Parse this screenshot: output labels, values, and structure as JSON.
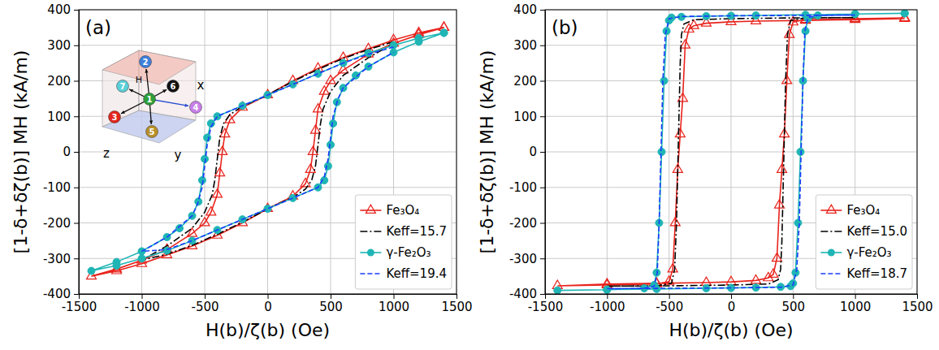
{
  "chart_data": [
    {
      "type": "line",
      "title": "(a)",
      "x_label": "H(b)/ζ(b) (Oe)",
      "y_label": "[1-δ+δζ(b)] MH (kA/m)",
      "xlim": [
        -1500,
        1500
      ],
      "xticks": [
        -1500,
        -1000,
        -500,
        0,
        500,
        1000,
        1500
      ],
      "ylim": [
        -400,
        400
      ],
      "yticks": [
        -400,
        -300,
        -200,
        -100,
        0,
        100,
        200,
        300,
        400
      ],
      "grid": true,
      "legend": "lower right",
      "inset": {
        "labels": [
          "1",
          "2",
          "3",
          "4",
          "5",
          "6",
          "7"
        ],
        "colors": [
          "#2e9e3a",
          "#3f7fd9",
          "#e3261c",
          "#c77fe8",
          "#b8902a",
          "#111111",
          "#5ad0d8"
        ],
        "axis_labels": [
          "x",
          "y",
          "z"
        ],
        "field_label": "H"
      },
      "series": [
        {
          "name": "Fe₃O₄",
          "color": "#e8231c",
          "marker": "triangle",
          "line_style": "solid",
          "x": [
            1400,
            1200,
            1000,
            800,
            600,
            400,
            200,
            0,
            -200,
            -300,
            -340,
            -360,
            -380,
            -400,
            -450,
            -500,
            -600,
            -800,
            -1000,
            -1200,
            -1400,
            -1200,
            -1000,
            -800,
            -600,
            -400,
            -200,
            0,
            200,
            300,
            340,
            360,
            380,
            400,
            450,
            500,
            600,
            800,
            1000,
            1200,
            1400
          ],
          "values": [
            350,
            335,
            315,
            290,
            265,
            235,
            200,
            160,
            125,
            90,
            50,
            0,
            -60,
            -120,
            -170,
            -200,
            -230,
            -275,
            -305,
            -330,
            -350,
            -335,
            -315,
            -290,
            -265,
            -235,
            -200,
            -160,
            -125,
            -90,
            -50,
            0,
            60,
            120,
            170,
            200,
            230,
            275,
            305,
            330,
            350
          ]
        },
        {
          "name": "Keff=15.7",
          "color": "#000000",
          "marker": "none",
          "line_style": "dashdot",
          "x": [
            1000,
            800,
            600,
            400,
            200,
            0,
            -200,
            -300,
            -350,
            -380,
            -400,
            -420,
            -440,
            -500,
            -600,
            -800,
            -1000,
            -800,
            -600,
            -400,
            -200,
            0,
            200,
            300,
            350,
            380,
            400,
            420,
            440,
            500,
            600,
            800,
            1000
          ],
          "values": [
            310,
            288,
            263,
            232,
            198,
            160,
            128,
            105,
            80,
            40,
            -20,
            -80,
            -120,
            -170,
            -215,
            -265,
            -305,
            -288,
            -263,
            -232,
            -198,
            -160,
            -128,
            -105,
            -80,
            -40,
            20,
            80,
            120,
            170,
            215,
            265,
            305
          ]
        },
        {
          "name": "γ-Fe₂O₃",
          "color": "#1fb5b5",
          "marker": "circle",
          "line_style": "solid",
          "x": [
            1400,
            1200,
            1000,
            800,
            600,
            400,
            200,
            0,
            -200,
            -400,
            -450,
            -480,
            -500,
            -520,
            -550,
            -600,
            -700,
            -800,
            -1000,
            -1200,
            -1400,
            -1200,
            -1000,
            -800,
            -600,
            -400,
            -200,
            0,
            200,
            400,
            450,
            480,
            500,
            520,
            550,
            600,
            700,
            800,
            1000,
            1200,
            1400
          ],
          "values": [
            335,
            320,
            300,
            278,
            250,
            220,
            190,
            160,
            130,
            100,
            80,
            40,
            -20,
            -80,
            -140,
            -180,
            -215,
            -240,
            -280,
            -310,
            -335,
            -320,
            -300,
            -278,
            -250,
            -220,
            -190,
            -160,
            -130,
            -100,
            -80,
            -40,
            20,
            80,
            140,
            180,
            215,
            240,
            280,
            310,
            335
          ]
        },
        {
          "name": "Keff=19.4",
          "color": "#1a3cff",
          "marker": "none",
          "line_style": "dashed",
          "x": [
            1000,
            800,
            600,
            400,
            200,
            0,
            -200,
            -400,
            -450,
            -480,
            -500,
            -520,
            -560,
            -600,
            -800,
            -1000,
            -800,
            -600,
            -400,
            -200,
            0,
            200,
            400,
            450,
            480,
            500,
            520,
            560,
            600,
            800,
            1000
          ],
          "values": [
            295,
            275,
            250,
            220,
            190,
            160,
            130,
            100,
            70,
            20,
            -40,
            -100,
            -150,
            -180,
            -240,
            -280,
            -275,
            -250,
            -220,
            -190,
            -160,
            -130,
            -100,
            -70,
            -20,
            40,
            100,
            150,
            180,
            240,
            280
          ]
        }
      ]
    },
    {
      "type": "line",
      "title": "(b)",
      "x_label": "H(b)/ζ(b) (Oe)",
      "y_label": "[1-δ+δζ(b)] MH (kA/m)",
      "xlim": [
        -1500,
        1500
      ],
      "xticks": [
        -1500,
        -1000,
        -500,
        0,
        500,
        1000,
        1500
      ],
      "ylim": [
        -400,
        400
      ],
      "yticks": [
        -400,
        -300,
        -200,
        -100,
        0,
        100,
        200,
        300,
        400
      ],
      "grid": true,
      "legend": "lower right",
      "series": [
        {
          "name": "Fe₃O₄",
          "color": "#e8231c",
          "marker": "triangle",
          "line_style": "solid",
          "x": [
            1400,
            1000,
            600,
            200,
            0,
            -200,
            -300,
            -340,
            -370,
            -390,
            -410,
            -430,
            -450,
            -470,
            -500,
            -600,
            -1000,
            -1400,
            -1000,
            -600,
            -200,
            0,
            200,
            300,
            340,
            370,
            390,
            410,
            430,
            450,
            470,
            500,
            600,
            1000,
            1400
          ],
          "values": [
            375,
            372,
            370,
            368,
            366,
            362,
            355,
            345,
            300,
            150,
            50,
            -50,
            -200,
            -330,
            -365,
            -372,
            -375,
            -377,
            -372,
            -370,
            -368,
            -366,
            -362,
            -355,
            -345,
            -300,
            -150,
            -50,
            50,
            200,
            330,
            365,
            372,
            375,
            377
          ]
        },
        {
          "name": "Keff=15.0",
          "color": "#000000",
          "marker": "none",
          "line_style": "dashdot",
          "x": [
            1000,
            500,
            0,
            -300,
            -380,
            -400,
            -410,
            -420,
            -430,
            -440,
            -455,
            -480,
            -600,
            -1000,
            -500,
            0,
            300,
            380,
            400,
            410,
            420,
            430,
            440,
            455,
            480,
            600,
            1000
          ],
          "values": [
            378,
            377,
            375,
            372,
            360,
            330,
            250,
            100,
            -50,
            -200,
            -330,
            -370,
            -377,
            -378,
            -377,
            -375,
            -372,
            -360,
            -330,
            -250,
            -100,
            50,
            200,
            330,
            370,
            377,
            378
          ]
        },
        {
          "name": "γ-Fe₂O₃",
          "color": "#1fb5b5",
          "marker": "circle",
          "line_style": "solid",
          "x": [
            1400,
            1000,
            600,
            200,
            0,
            -200,
            -400,
            -480,
            -500,
            -520,
            -540,
            -560,
            -580,
            -600,
            -620,
            -700,
            -1000,
            -1400,
            -1000,
            -600,
            -200,
            0,
            200,
            400,
            480,
            500,
            520,
            540,
            560,
            580,
            600,
            620,
            700,
            1000,
            1400
          ],
          "values": [
            390,
            388,
            386,
            384,
            383,
            382,
            380,
            378,
            370,
            340,
            200,
            0,
            -200,
            -340,
            -375,
            -384,
            -388,
            -390,
            -388,
            -386,
            -384,
            -383,
            -382,
            -380,
            -378,
            -370,
            -340,
            -200,
            0,
            200,
            340,
            375,
            384,
            388,
            390
          ]
        },
        {
          "name": "Keff=18.7",
          "color": "#1a3cff",
          "marker": "none",
          "line_style": "dashed",
          "x": [
            1000,
            500,
            0,
            -400,
            -500,
            -530,
            -550,
            -565,
            -580,
            -595,
            -620,
            -700,
            -1000,
            -500,
            0,
            400,
            500,
            530,
            550,
            565,
            580,
            595,
            620,
            700,
            1000
          ],
          "values": [
            385,
            384,
            383,
            381,
            375,
            330,
            200,
            0,
            -200,
            -340,
            -378,
            -384,
            -385,
            -384,
            -383,
            -381,
            -375,
            -330,
            -200,
            0,
            200,
            340,
            378,
            384,
            385
          ]
        }
      ]
    }
  ]
}
